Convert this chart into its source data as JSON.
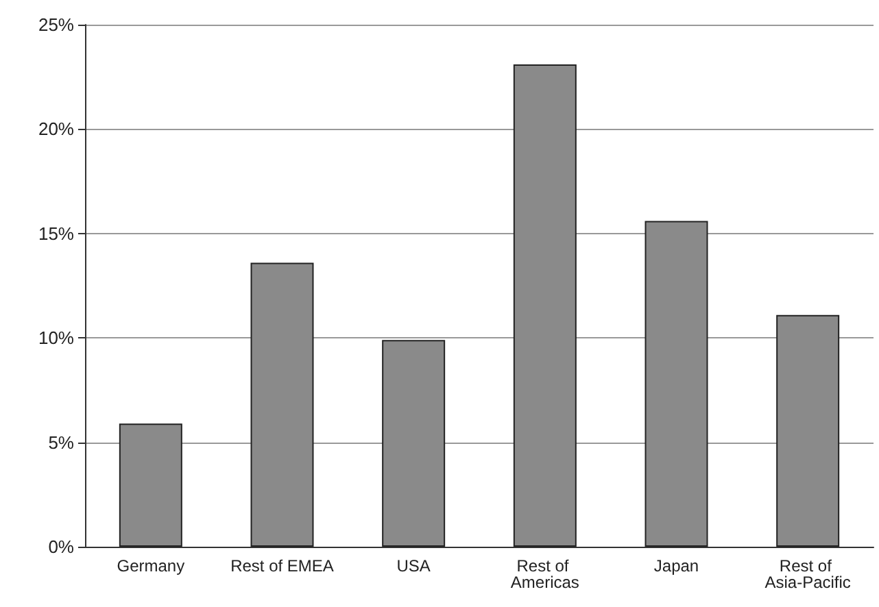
{
  "chart_data": {
    "type": "bar",
    "categories": [
      "Germany",
      "Rest of EMEA",
      "USA",
      "Rest of Americas",
      "Japan",
      "Rest of Asia-Pacific"
    ],
    "values": [
      5.9,
      13.6,
      9.9,
      23.1,
      15.6,
      11.1
    ],
    "color": "#8a8a8a",
    "ylim": [
      0,
      25
    ],
    "yticks": [
      {
        "value": 0,
        "label": "0%"
      },
      {
        "value": 5,
        "label": "5%"
      },
      {
        "value": 10,
        "label": "10%"
      },
      {
        "value": 15,
        "label": "15%"
      },
      {
        "value": 20,
        "label": "20%"
      },
      {
        "value": 25,
        "label": "25%"
      }
    ],
    "grid": "y"
  }
}
